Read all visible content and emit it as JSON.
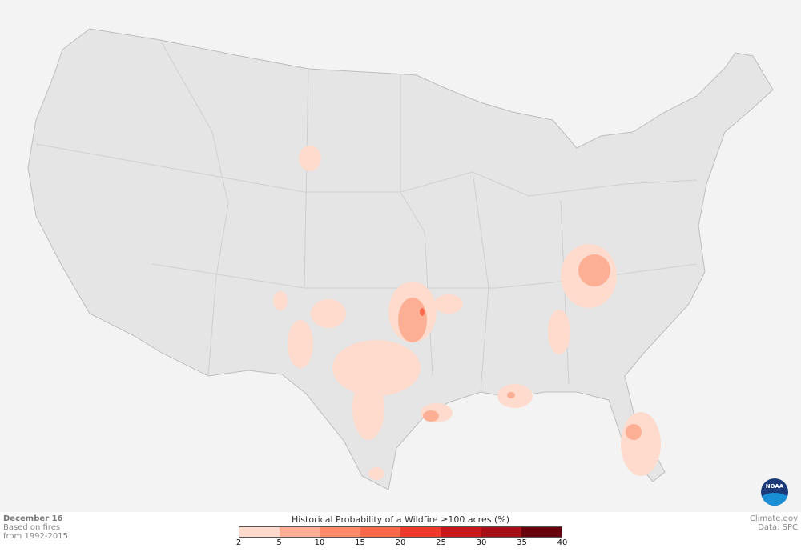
{
  "footer": {
    "date": "December 16",
    "basis_line1": "Based on fires",
    "basis_line2": "from 1992-2015",
    "credit": "Climate.gov",
    "source": "Data: SPC",
    "logo": "NOAA"
  },
  "legend": {
    "title": "Historical Probability of a Wildfire ≥100 acres (%)",
    "ticks": [
      "2",
      "5",
      "10",
      "15",
      "20",
      "25",
      "30",
      "35",
      "40"
    ],
    "colors": [
      "#fedbcc",
      "#fcaf94",
      "#fc8a6a",
      "#f9694c",
      "#ee3a2c",
      "#c9181d",
      "#a50f15",
      "#67000d"
    ]
  },
  "map": {
    "land_color": "#e5e5e5",
    "border_color": "#c4c4c4",
    "background_color": "#f3f3f3"
  }
}
